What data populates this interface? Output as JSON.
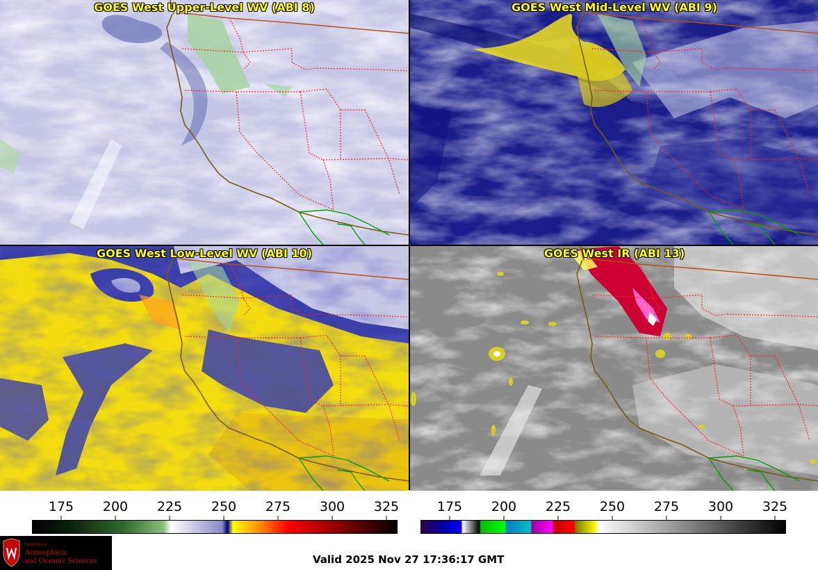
{
  "panels": [
    {
      "title": "GOES West Upper-Level WV (ABI 8)"
    },
    {
      "title": "GOES West Mid-Level WV (ABI 9)"
    },
    {
      "title": "GOES West Low-Level WV (ABI 10)"
    },
    {
      "title": "GOES West IR (ABI 13)"
    }
  ],
  "colorbars": {
    "wv": {
      "ticks": [
        "175",
        "200",
        "225",
        "250",
        "275",
        "300",
        "325"
      ]
    },
    "ir": {
      "ticks": [
        "175",
        "200",
        "225",
        "250",
        "275",
        "300",
        "325"
      ]
    }
  },
  "logo": {
    "department": "Department of",
    "name_line1": "Atmospheric",
    "name_line2": "and Oceanic Sciences"
  },
  "footer": {
    "valid_time": "Valid 2025 Nov 27 17:36:17 GMT"
  },
  "colors": {
    "state_borders": "#ff2020",
    "coastline": "#7a5a10",
    "title_text": "#ffff00",
    "intl_border": "#00aa00"
  }
}
